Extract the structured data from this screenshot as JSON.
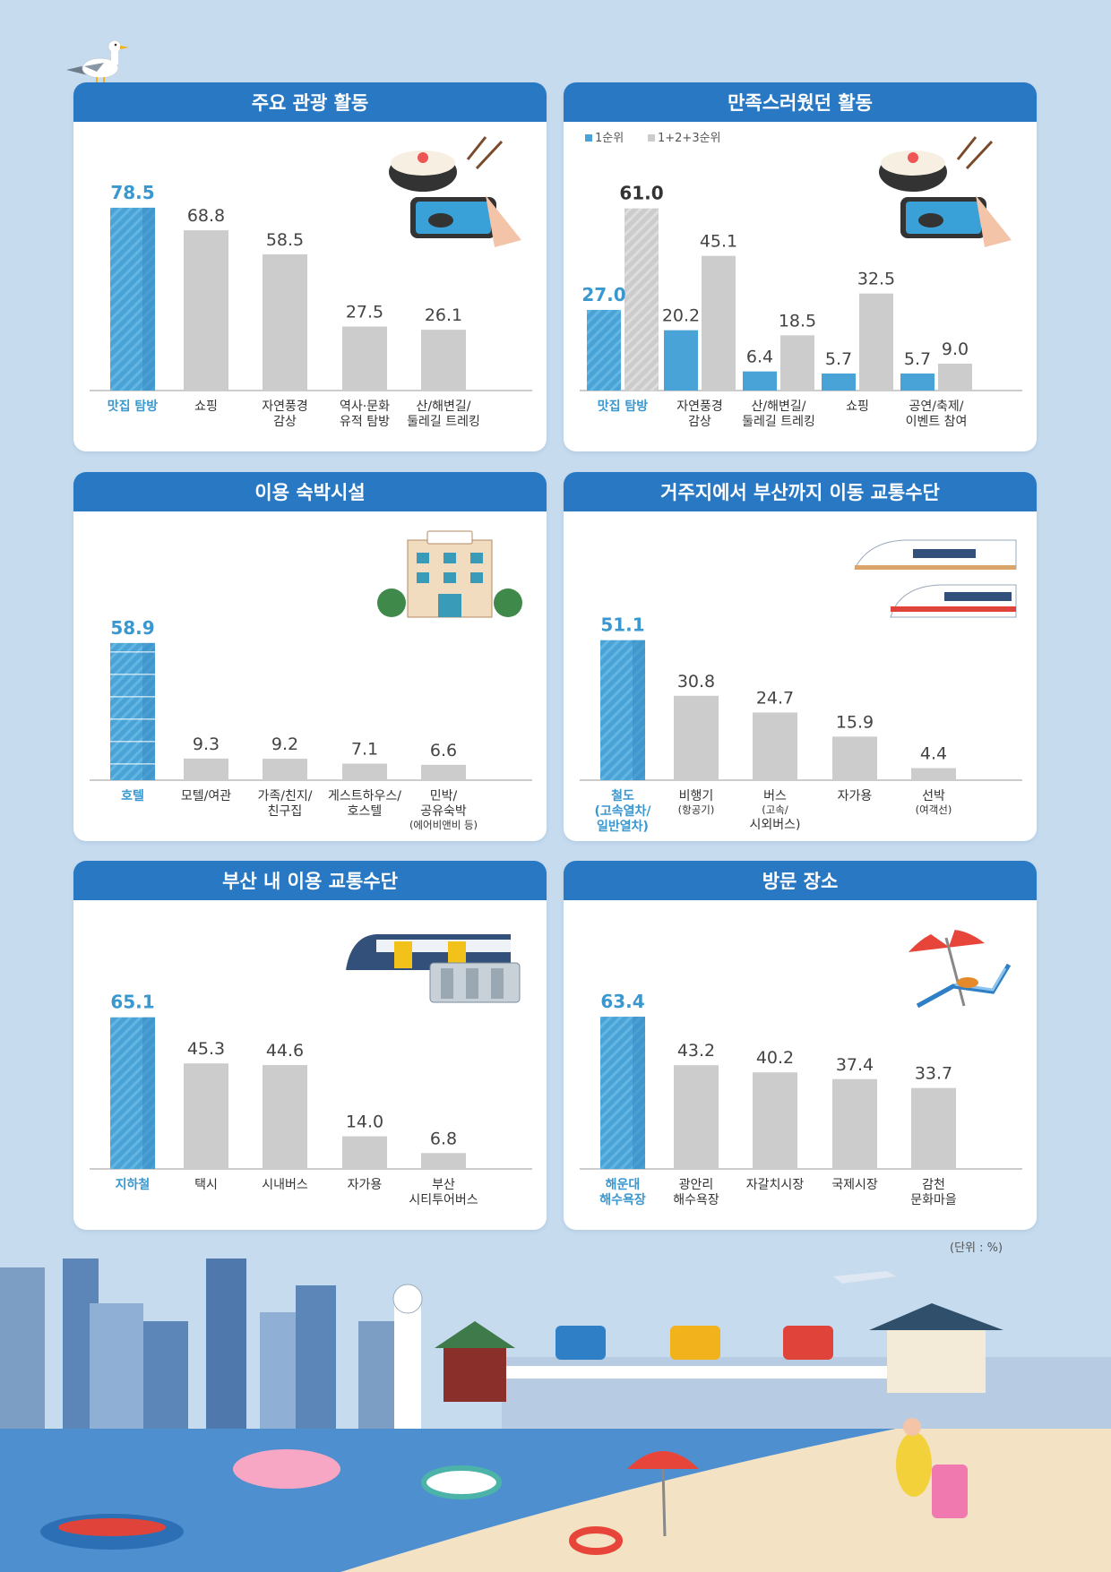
{
  "unit_note": "(단위 : %)",
  "colors": {
    "highlight": "#4aa3d6",
    "gray": "#cccccc",
    "header": "#2878c4"
  },
  "chart_data": [
    {
      "id": "activities",
      "type": "bar",
      "title": "주요 관광 활동",
      "categories": [
        [
          "맛집 탐방"
        ],
        [
          "쇼핑"
        ],
        [
          "자연풍경",
          "감상"
        ],
        [
          "역사·문화",
          "유적 탐방"
        ],
        [
          "산/해변길/",
          "둘레길 트레킹"
        ]
      ],
      "values": [
        78.5,
        68.8,
        58.5,
        27.5,
        26.1
      ],
      "highlight_index": 0,
      "ylim": [
        0,
        100
      ]
    },
    {
      "id": "satisfying",
      "type": "bar",
      "title": "만족스러웠던 활동",
      "legend": [
        "1순위",
        "1+2+3순위"
      ],
      "categories": [
        [
          "맛집 탐방"
        ],
        [
          "자연풍경",
          "감상"
        ],
        [
          "산/해변길/",
          "둘레길 트레킹"
        ],
        [
          "쇼핑"
        ],
        [
          "공연/축제/",
          "이벤트 참여"
        ]
      ],
      "series": [
        {
          "name": "1순위",
          "values": [
            27.0,
            20.2,
            6.4,
            5.7,
            5.7
          ]
        },
        {
          "name": "1+2+3순위",
          "values": [
            61.0,
            45.1,
            18.5,
            32.5,
            9.0
          ]
        }
      ],
      "highlight_index": 0,
      "ylim": [
        0,
        78
      ]
    },
    {
      "id": "accommodation",
      "type": "bar",
      "title": "이용 숙박시설",
      "categories": [
        [
          "호텔"
        ],
        [
          "모텔/여관"
        ],
        [
          "가족/친지/",
          "친구집"
        ],
        [
          "게스트하우스/",
          "호스텔"
        ],
        [
          "민박/",
          "공유숙박",
          "(에어비앤비 등)"
        ]
      ],
      "values": [
        58.9,
        9.3,
        9.2,
        7.1,
        6.6
      ],
      "highlight_index": 0,
      "ylim": [
        0,
        100
      ]
    },
    {
      "id": "transport_to_busan",
      "type": "bar",
      "title": "거주지에서 부산까지 이동 교통수단",
      "categories": [
        [
          "철도",
          "(고속열차/",
          "일반열차)"
        ],
        [
          "비행기",
          "(항공기)"
        ],
        [
          "버스",
          "(고속/",
          "시외버스)"
        ],
        [
          "자가용"
        ],
        [
          "선박",
          "(여객선)"
        ]
      ],
      "values": [
        51.1,
        30.8,
        24.7,
        15.9,
        4.4
      ],
      "highlight_index": 0,
      "ylim": [
        0,
        85
      ]
    },
    {
      "id": "transport_in_busan",
      "type": "bar",
      "title": "부산 내 이용 교통수단",
      "categories": [
        [
          "지하철"
        ],
        [
          "택시"
        ],
        [
          "시내버스"
        ],
        [
          "자가용"
        ],
        [
          "부산",
          "시티투어버스"
        ]
      ],
      "values": [
        65.1,
        45.3,
        44.6,
        14.0,
        6.8
      ],
      "highlight_index": 0,
      "ylim": [
        0,
        100
      ]
    },
    {
      "id": "places",
      "type": "bar",
      "title": "방문 장소",
      "categories": [
        [
          "해운대",
          "해수욕장"
        ],
        [
          "광안리",
          "해수욕장"
        ],
        [
          "자갈치시장"
        ],
        [
          "국제시장"
        ],
        [
          "감천",
          "문화마을"
        ]
      ],
      "values": [
        63.4,
        43.2,
        40.2,
        37.4,
        33.7
      ],
      "highlight_index": 0,
      "ylim": [
        0,
        97
      ]
    }
  ]
}
